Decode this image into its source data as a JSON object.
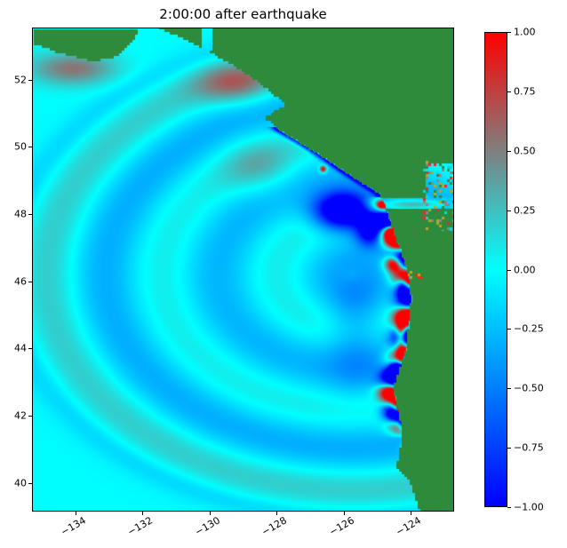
{
  "chart_data": {
    "type": "heatmap",
    "title": "2:00:00 after earthquake",
    "xlabel": "",
    "ylabel": "",
    "xlim": [
      -135.3,
      -122.7
    ],
    "ylim": [
      39.15,
      53.55
    ],
    "xticks": [
      -134,
      -132,
      -130,
      -128,
      -126,
      -124
    ],
    "xtick_labels": [
      "−134",
      "−132",
      "−130",
      "−128",
      "−126",
      "−124"
    ],
    "xtick_rotation_deg": 30,
    "yticks": [
      40,
      42,
      44,
      46,
      48,
      50,
      52
    ],
    "ytick_labels": [
      "40",
      "42",
      "44",
      "46",
      "48",
      "50",
      "52"
    ],
    "grid": false,
    "legend": "none",
    "colorbar": {
      "position": "right",
      "vmin": -1.0,
      "vmax": 1.0,
      "ticks": [
        1.0,
        0.75,
        0.5,
        0.25,
        0.0,
        -0.25,
        -0.5,
        -0.75,
        -1.0
      ],
      "tick_labels": [
        "1.00",
        "0.75",
        "0.50",
        "0.25",
        "0.00",
        "−0.25",
        "−0.50",
        "−0.75",
        "−1.00"
      ],
      "colormap_stops": [
        {
          "value": -1.0,
          "color": "#0000ff"
        },
        {
          "value": 0.0,
          "color": "#00ffff"
        },
        {
          "value": 1.0,
          "color": "#ff0000"
        }
      ]
    },
    "land_color": "#2f8b3c",
    "units": "simulated tsunami sea-surface elevation, saturated at ±1",
    "field": {
      "description": "Tsunami wave field 2 hours after a Cascadia earthquake: concentric wave fronts radiate southwest into the Pacific from a source off the Oregon-Washington coast; strongest ±1 amplitudes are trapped along the coastline between ~41N and ~49N; land (dark green) covers the NE of the map.",
      "grid_deg": 0.08,
      "source": {
        "lon": -125.7,
        "lat": 46.2
      },
      "lon_scale": 0.7,
      "leading_radius_deg": 7.0,
      "ring_wavelength_deg": 2.4,
      "ring_amplitude": 0.26,
      "coastline": [
        [
          39.15,
          -123.7
        ],
        [
          40.0,
          -124.0
        ],
        [
          40.45,
          -124.4
        ],
        [
          41.5,
          -124.2
        ],
        [
          42.8,
          -124.5
        ],
        [
          44.0,
          -124.1
        ],
        [
          45.5,
          -123.95
        ],
        [
          46.3,
          -124.05
        ],
        [
          47.4,
          -124.45
        ],
        [
          48.3,
          -124.75
        ],
        [
          48.6,
          -124.9
        ],
        [
          49.3,
          -126.0
        ],
        [
          49.9,
          -126.9
        ],
        [
          50.5,
          -127.9
        ],
        [
          50.9,
          -128.35
        ],
        [
          51.3,
          -127.7
        ],
        [
          51.9,
          -128.5
        ],
        [
          52.5,
          -129.4
        ],
        [
          53.0,
          -130.3
        ],
        [
          53.55,
          -131.5
        ]
      ],
      "strait_of_juan_de_fuca": {
        "lat_min": 48.17,
        "lat_max": 48.45,
        "lon_east_of": -124.85
      },
      "georgia_strait": {
        "lat_min": 48.45,
        "lat_max": 49.55,
        "lon_east_of": -123.55
      },
      "top_channel": {
        "lon": -130.1,
        "half_width": 0.14,
        "lat_min": 52.9
      },
      "haida_gwaii_polygon": [
        [
          53.55,
          -135.3
        ],
        [
          53.55,
          -132.1
        ],
        [
          53.2,
          -132.3
        ],
        [
          52.7,
          -132.8
        ],
        [
          52.55,
          -133.5
        ],
        [
          52.8,
          -134.5
        ],
        [
          53.1,
          -135.3
        ]
      ],
      "coastal_oscillation": {
        "lat_min": 41.3,
        "lat_max": 48.6,
        "amplitude": 2.2,
        "wavelength_deg": 1.15,
        "offshore_efold_deg": 0.4,
        "phase": 0.6
      },
      "vi_coast_trough": {
        "lat_min": 48.5,
        "lat_max": 50.6,
        "amplitude": -1.0,
        "offshore_efold_deg": 0.18
      },
      "hotspots": [
        {
          "lon": -126.0,
          "lat": 48.1,
          "value": -1.6,
          "sx": 0.85,
          "sy": 0.55
        },
        {
          "lon": -125.15,
          "lat": 47.5,
          "value": -1.2,
          "sx": 0.45,
          "sy": 0.45
        },
        {
          "lon": -124.55,
          "lat": 47.5,
          "value": 1.9,
          "sx": 0.22,
          "sy": 0.2
        },
        {
          "lon": -124.45,
          "lat": 46.55,
          "value": 2.0,
          "sx": 0.28,
          "sy": 0.26
        },
        {
          "lon": -124.2,
          "lat": 45.9,
          "value": -1.5,
          "sx": 0.2,
          "sy": 0.25
        },
        {
          "lon": -124.25,
          "lat": 44.4,
          "value": 1.7,
          "sx": 0.16,
          "sy": 0.45
        },
        {
          "lon": -124.4,
          "lat": 43.3,
          "value": -1.5,
          "sx": 0.2,
          "sy": 0.45
        },
        {
          "lon": -124.35,
          "lat": 42.25,
          "value": 1.5,
          "sx": 0.18,
          "sy": 0.22
        },
        {
          "lon": -124.2,
          "lat": 41.7,
          "value": -1.0,
          "sx": 0.15,
          "sy": 0.18
        },
        {
          "lon": -124.1,
          "lat": 41.0,
          "value": 0.8,
          "sx": 0.15,
          "sy": 0.15
        },
        {
          "lon": -124.85,
          "lat": 48.28,
          "value": 1.4,
          "sx": 0.1,
          "sy": 0.08
        },
        {
          "lon": -126.6,
          "lat": 49.35,
          "value": 1.2,
          "sx": 0.1,
          "sy": 0.1
        },
        {
          "lon": -134.1,
          "lat": 52.35,
          "value": 0.55,
          "sx": 1.3,
          "sy": 0.5
        },
        {
          "lon": -129.2,
          "lat": 51.9,
          "value": 0.5,
          "sx": 1.2,
          "sy": 0.6
        },
        {
          "lon": -128.5,
          "lat": 49.4,
          "value": 0.3,
          "sx": 1.1,
          "sy": 0.8
        },
        {
          "lon": -123.8,
          "lat": 48.3,
          "value": 0.5,
          "sx": 0.9,
          "sy": 0.13
        },
        {
          "lon": -125.6,
          "lat": 44.6,
          "value": -0.3,
          "sx": 0.9,
          "sy": 1.8
        }
      ],
      "speckle_regions": [
        {
          "lon_min": -123.6,
          "lon_max": -122.7,
          "lat_min": 47.5,
          "lat_max": 49.6,
          "density": 0.3,
          "colors": [
            "#b8a820",
            "#ff2020",
            "#00dddd",
            "#2f8b3c",
            "#888888"
          ]
        },
        {
          "lon_min": -124.05,
          "lon_max": -123.55,
          "lat_min": 46.05,
          "lat_max": 46.35,
          "density": 0.25,
          "colors": [
            "#b8a820",
            "#ff2020",
            "#2f8b3c"
          ]
        }
      ]
    }
  }
}
